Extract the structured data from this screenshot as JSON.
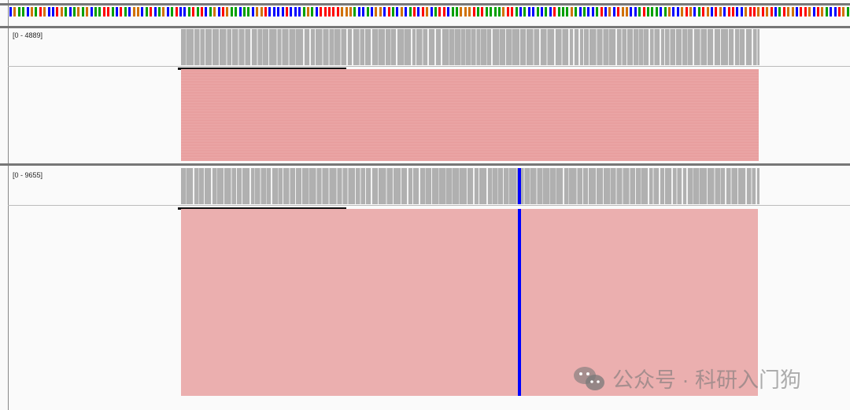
{
  "sequence_track": {
    "base_colors": {
      "A": "#00a000",
      "C": "#0000ff",
      "G": "#d17105",
      "T": "#ff0000"
    }
  },
  "tracks": [
    {
      "range_label": "[0 - 4889]",
      "coverage_color": "#b0b0b0",
      "read_color": "#eba9a9"
    },
    {
      "range_label": "[0 - 9655]",
      "coverage_color": "#b0b0b0",
      "read_color": "#ebafaf",
      "highlight_color": "#0000ff"
    }
  ],
  "watermark": {
    "text": "公众号 · 科研入门狗",
    "icon": "wechat-icon"
  }
}
